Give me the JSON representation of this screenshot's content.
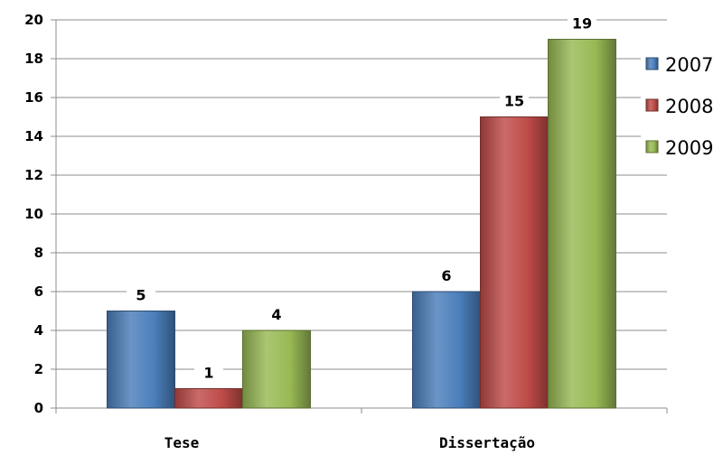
{
  "chart_data": {
    "type": "bar",
    "categories": [
      "Tese",
      "Dissertação"
    ],
    "series": [
      {
        "name": "2007",
        "values": [
          5,
          6
        ],
        "color": "#4a7ebb"
      },
      {
        "name": "2008",
        "values": [
          1,
          15
        ],
        "color": "#be4b48"
      },
      {
        "name": "2009",
        "values": [
          4,
          19
        ],
        "color": "#98b954"
      }
    ],
    "ylim": [
      0,
      20
    ],
    "yticks": [
      0,
      2,
      4,
      6,
      8,
      10,
      12,
      14,
      16,
      18,
      20
    ],
    "grid": true,
    "legend": "right"
  }
}
